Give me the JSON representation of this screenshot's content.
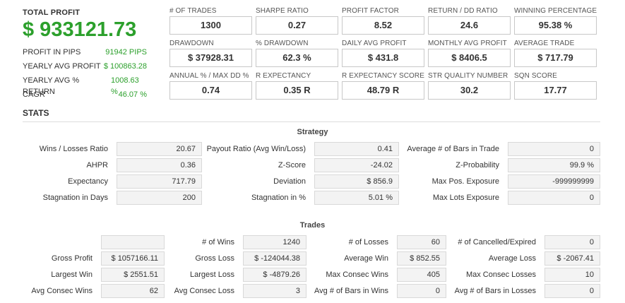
{
  "summary": {
    "title": "TOTAL PROFIT",
    "value": "$ 933121.73",
    "rows": [
      {
        "label": "PROFIT IN PIPS",
        "value": "91942 PIPS"
      },
      {
        "label": "YEARLY AVG PROFIT",
        "value": "$ 100863.28"
      },
      {
        "label": "YEARLY AVG % RETURN",
        "value": "1008.63 %"
      },
      {
        "label": "CAGR",
        "value": "46.07 %"
      }
    ]
  },
  "metrics": [
    {
      "label": "# OF TRADES",
      "value": "1300"
    },
    {
      "label": "SHARPE RATIO",
      "value": "0.27"
    },
    {
      "label": "PROFIT FACTOR",
      "value": "8.52"
    },
    {
      "label": "RETURN / DD RATIO",
      "value": "24.6"
    },
    {
      "label": "WINNING PERCENTAGE",
      "value": "95.38 %"
    },
    {
      "label": "DRAWDOWN",
      "value": "$ 37928.31"
    },
    {
      "label": "% DRAWDOWN",
      "value": "62.3 %"
    },
    {
      "label": "DAILY AVG PROFIT",
      "value": "$ 431.8"
    },
    {
      "label": "MONTHLY AVG PROFIT",
      "value": "$ 8406.5"
    },
    {
      "label": "AVERAGE TRADE",
      "value": "$ 717.79"
    },
    {
      "label": "ANNUAL % / MAX DD %",
      "value": "0.74"
    },
    {
      "label": "R EXPECTANCY",
      "value": "0.35 R"
    },
    {
      "label": "R EXPECTANCY SCORE",
      "value": "48.79 R"
    },
    {
      "label": "STR QUALITY NUMBER",
      "value": "30.2"
    },
    {
      "label": "SQN SCORE",
      "value": "17.77"
    }
  ],
  "stats": {
    "header": "STATS",
    "strategy_title": "Strategy",
    "strategy": [
      [
        {
          "label": "Wins / Losses Ratio",
          "value": "20.67"
        },
        {
          "label": "Payout Ratio (Avg Win/Loss)",
          "value": "0.41"
        },
        {
          "label": "Average # of Bars in Trade",
          "value": "0"
        }
      ],
      [
        {
          "label": "AHPR",
          "value": "0.36"
        },
        {
          "label": "Z-Score",
          "value": "-24.02"
        },
        {
          "label": "Z-Probability",
          "value": "99.9 %"
        }
      ],
      [
        {
          "label": "Expectancy",
          "value": "717.79"
        },
        {
          "label": "Deviation",
          "value": "$ 856.9"
        },
        {
          "label": "Max Pos. Exposure",
          "value": "-999999999"
        }
      ],
      [
        {
          "label": "Stagnation in Days",
          "value": "200"
        },
        {
          "label": "Stagnation in %",
          "value": "5.01 %"
        },
        {
          "label": "Max Lots Exposure",
          "value": "0"
        }
      ]
    ],
    "trades_title": "Trades",
    "trades": [
      [
        {
          "label": "",
          "value": ""
        },
        {
          "label": "# of Wins",
          "value": "1240"
        },
        {
          "label": "# of Losses",
          "value": "60"
        },
        {
          "label": "# of Cancelled/Expired",
          "value": "0"
        }
      ],
      [
        {
          "label": "Gross Profit",
          "value": "$ 1057166.11"
        },
        {
          "label": "Gross Loss",
          "value": "$ -124044.38"
        },
        {
          "label": "Average Win",
          "value": "$ 852.55"
        },
        {
          "label": "Average Loss",
          "value": "$ -2067.41"
        }
      ],
      [
        {
          "label": "Largest Win",
          "value": "$ 2551.51"
        },
        {
          "label": "Largest Loss",
          "value": "$ -4879.26"
        },
        {
          "label": "Max Consec Wins",
          "value": "405"
        },
        {
          "label": "Max Consec Losses",
          "value": "10"
        }
      ],
      [
        {
          "label": "Avg Consec Wins",
          "value": "62"
        },
        {
          "label": "Avg Consec Loss",
          "value": "3"
        },
        {
          "label": "Avg # of Bars in Wins",
          "value": "0"
        },
        {
          "label": "Avg # of Bars in Losses",
          "value": "0"
        }
      ]
    ]
  }
}
